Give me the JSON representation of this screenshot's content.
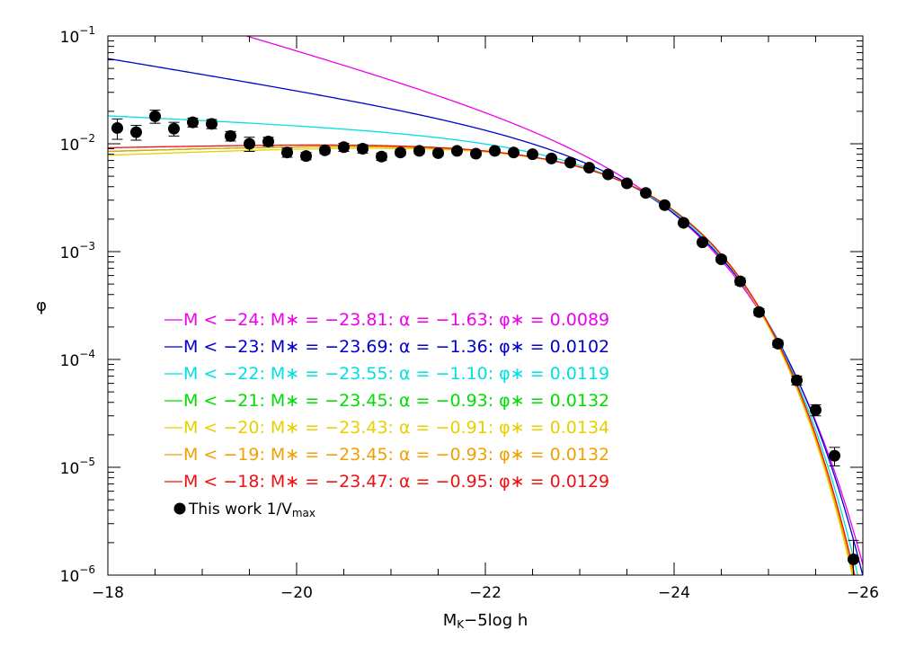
{
  "chart_data": {
    "type": "line",
    "title": "",
    "xlabel_main": "M",
    "xlabel_sub": "K",
    "xlabel_rest": "−5log h",
    "ylabel": "φ",
    "x_scale": "linear",
    "y_scale": "log",
    "xlim": [
      -18,
      -26
    ],
    "ylim": [
      1e-06,
      0.1
    ],
    "x_ticks": [
      {
        "value": -18,
        "label": "−18"
      },
      {
        "value": -20,
        "label": "−20"
      },
      {
        "value": -22,
        "label": "−22"
      },
      {
        "value": -24,
        "label": "−24"
      },
      {
        "value": -26,
        "label": "−26"
      }
    ],
    "y_ticks": [
      {
        "value": 0.1,
        "base": "10",
        "exp": "−1"
      },
      {
        "value": 0.01,
        "base": "10",
        "exp": "−2"
      },
      {
        "value": 0.001,
        "base": "10",
        "exp": "−3"
      },
      {
        "value": 0.0001,
        "base": "10",
        "exp": "−4"
      },
      {
        "value": 1e-05,
        "base": "10",
        "exp": "−5"
      },
      {
        "value": 1e-06,
        "base": "10",
        "exp": "−6"
      }
    ],
    "grid": false,
    "legend_position": "bottom-left",
    "series": [
      {
        "label": "M < −24: M∗ = −23.81: α = −1.63: φ∗ = 0.0089",
        "color": "#ee00ee",
        "mstar": -23.81,
        "alpha": -1.63,
        "phistar": 0.0089
      },
      {
        "label": "M < −23: M∗ = −23.69: α = −1.36: φ∗ = 0.0102",
        "color": "#0000cc",
        "mstar": -23.69,
        "alpha": -1.36,
        "phistar": 0.0102
      },
      {
        "label": "M < −22: M∗ = −23.55: α = −1.10: φ∗ = 0.0119",
        "color": "#00e0e0",
        "mstar": -23.55,
        "alpha": -1.1,
        "phistar": 0.0119
      },
      {
        "label": "M < −21: M∗ = −23.45: α = −0.93: φ∗ = 0.0132",
        "color": "#00dd00",
        "mstar": -23.45,
        "alpha": -0.93,
        "phistar": 0.0132
      },
      {
        "label": "M < −20: M∗ = −23.43: α = −0.91: φ∗ = 0.0134",
        "color": "#e6d000",
        "mstar": -23.43,
        "alpha": -0.91,
        "phistar": 0.0134
      },
      {
        "label": "M < −19: M∗ = −23.45: α = −0.93: φ∗ = 0.0132",
        "color": "#f0a000",
        "mstar": -23.45,
        "alpha": -0.93,
        "phistar": 0.0132
      },
      {
        "label": "M < −18: M∗ = −23.47: α = −0.95: φ∗ = 0.0129",
        "color": "#ee1111",
        "mstar": -23.47,
        "alpha": -0.95,
        "phistar": 0.0129
      }
    ],
    "points_label": "This work 1/V",
    "points_label_sub": "max",
    "points": [
      {
        "x": -18.1,
        "y": 0.014,
        "err": 0.003
      },
      {
        "x": -18.3,
        "y": 0.0128,
        "err": 0.002
      },
      {
        "x": -18.5,
        "y": 0.018,
        "err": 0.0025
      },
      {
        "x": -18.7,
        "y": 0.0138,
        "err": 0.002
      },
      {
        "x": -18.9,
        "y": 0.0158,
        "err": 0.0015
      },
      {
        "x": -19.1,
        "y": 0.0153,
        "err": 0.0015
      },
      {
        "x": -19.3,
        "y": 0.0118,
        "err": 0.0012
      },
      {
        "x": -19.5,
        "y": 0.01,
        "err": 0.0015
      },
      {
        "x": -19.7,
        "y": 0.0105,
        "err": 0.001
      },
      {
        "x": -19.9,
        "y": 0.0083,
        "err": 0.0008
      },
      {
        "x": -20.1,
        "y": 0.0077,
        "err": 0.0006
      },
      {
        "x": -20.3,
        "y": 0.0087,
        "err": 0.0006
      },
      {
        "x": -20.5,
        "y": 0.0093,
        "err": 0.0008
      },
      {
        "x": -20.7,
        "y": 0.009,
        "err": 0.0008
      },
      {
        "x": -20.9,
        "y": 0.0076,
        "err": 0.0006
      },
      {
        "x": -21.1,
        "y": 0.0083,
        "err": 0.0005
      },
      {
        "x": -21.3,
        "y": 0.0086,
        "err": 0.0005
      },
      {
        "x": -21.5,
        "y": 0.0082,
        "err": 0.0005
      },
      {
        "x": -21.7,
        "y": 0.0086,
        "err": 0.0004
      },
      {
        "x": -21.9,
        "y": 0.0081,
        "err": 0.0004
      },
      {
        "x": -22.1,
        "y": 0.0086,
        "err": 0.0004
      },
      {
        "x": -22.3,
        "y": 0.0083,
        "err": 0.0003
      },
      {
        "x": -22.5,
        "y": 0.008,
        "err": 0.0003
      },
      {
        "x": -22.7,
        "y": 0.0073,
        "err": 0.0003
      },
      {
        "x": -22.9,
        "y": 0.0067,
        "err": 0.0003
      },
      {
        "x": -23.1,
        "y": 0.006,
        "err": 0.0002
      },
      {
        "x": -23.3,
        "y": 0.0052,
        "err": 0.0002
      },
      {
        "x": -23.5,
        "y": 0.0043,
        "err": 0.0002
      },
      {
        "x": -23.7,
        "y": 0.0035,
        "err": 0.0001
      },
      {
        "x": -23.9,
        "y": 0.0027,
        "err": 0.0001
      },
      {
        "x": -24.1,
        "y": 0.00185,
        "err": 8e-05
      },
      {
        "x": -24.3,
        "y": 0.00122,
        "err": 6e-05
      },
      {
        "x": -24.5,
        "y": 0.00085,
        "err": 5e-05
      },
      {
        "x": -24.7,
        "y": 0.00053,
        "err": 4e-05
      },
      {
        "x": -24.9,
        "y": 0.000275,
        "err": 2e-05
      },
      {
        "x": -25.1,
        "y": 0.00014,
        "err": 1e-05
      },
      {
        "x": -25.3,
        "y": 6.4e-05,
        "err": 6e-06
      },
      {
        "x": -25.5,
        "y": 3.4e-05,
        "err": 4e-06
      },
      {
        "x": -25.7,
        "y": 1.28e-05,
        "err": 2.5e-06
      },
      {
        "x": -25.9,
        "y": 1.4e-06,
        "err": 7e-07
      }
    ]
  }
}
